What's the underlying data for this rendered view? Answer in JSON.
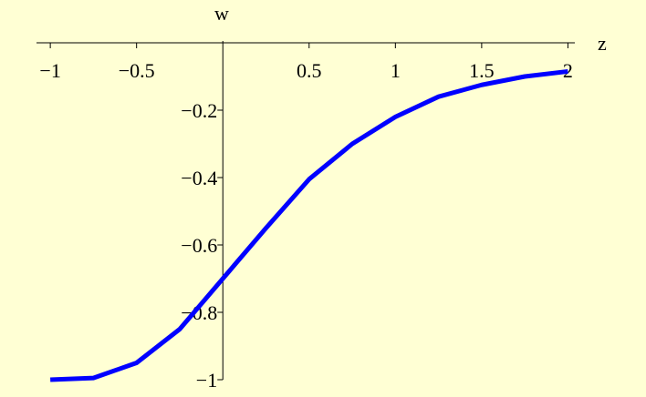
{
  "chart_data": {
    "type": "line",
    "x_label": "z",
    "y_label": "w",
    "x": [
      -1,
      -0.75,
      -0.5,
      -0.25,
      0,
      0.25,
      0.5,
      0.75,
      1,
      1.25,
      1.5,
      1.75,
      2
    ],
    "series": [
      {
        "color": "#0000ff",
        "values": [
          -1,
          -0.995,
          -0.95,
          -0.85,
          -0.7,
          -0.55,
          -0.405,
          -0.3,
          -0.22,
          -0.16,
          -0.125,
          -0.1,
          -0.085
        ]
      }
    ],
    "xlim": [
      -1.08,
      2.04
    ],
    "ylim": [
      -1,
      0
    ],
    "xticks": [
      {
        "value": -1,
        "label": "−1"
      },
      {
        "value": -0.5,
        "label": "−0.5"
      },
      0.5,
      1,
      1.5,
      2
    ],
    "yticks": [
      {
        "value": -0.2,
        "label": "−0.2"
      },
      {
        "value": -0.4,
        "label": "−0.4"
      },
      {
        "value": -0.6,
        "label": "−0.6"
      },
      {
        "value": -0.8,
        "label": "−0.8"
      },
      {
        "value": -1,
        "label": "−1"
      }
    ]
  }
}
